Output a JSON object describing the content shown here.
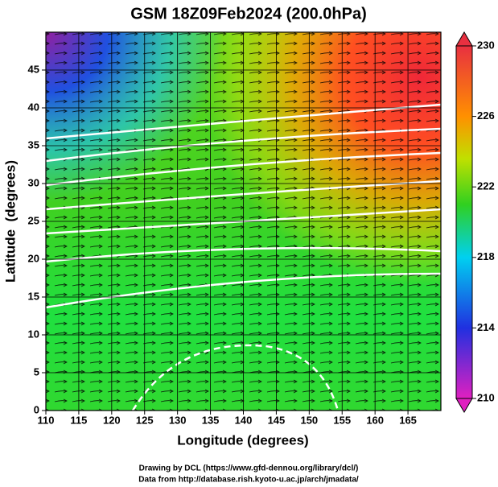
{
  "chart_data": {
    "type": "map",
    "title": "GSM 18Z09Feb2024 (200.0hPa)",
    "xlabel": "Longitude (degrees)",
    "ylabel": "Latitude  (degrees)",
    "xlim": [
      110,
      170
    ],
    "ylim": [
      0,
      50
    ],
    "xticks": [
      110,
      115,
      120,
      125,
      130,
      135,
      140,
      145,
      150,
      155,
      160,
      165
    ],
    "yticks": [
      0,
      5,
      10,
      15,
      20,
      25,
      30,
      35,
      40,
      45
    ],
    "grid": true,
    "colorbar": {
      "lim": [
        210,
        230
      ],
      "ticks": [
        210,
        214,
        218,
        222,
        226,
        230
      ]
    },
    "footnotes": [
      "Drawing by DCL (https://www.gfd-dennou.org/library/dcl/)",
      "Data from http://database.rish.kyoto-u.ac.jp/arch/jmadata/"
    ]
  }
}
